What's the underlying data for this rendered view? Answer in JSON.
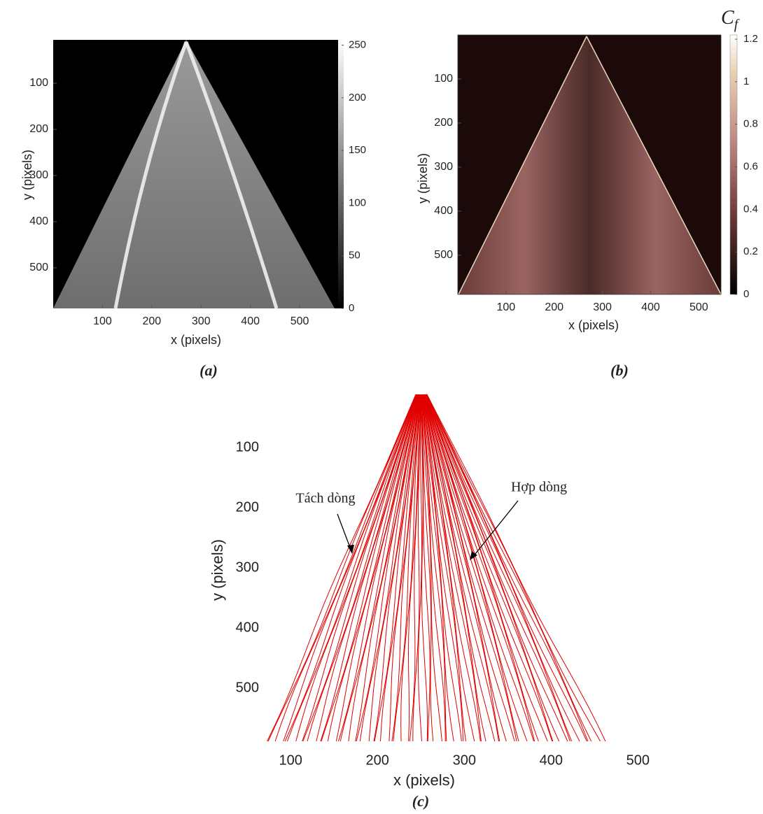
{
  "panels": [
    {
      "caption": "(a)",
      "x_label": "x (pixels)",
      "y_label": "y (pixels)",
      "xlim": [
        0,
        578
      ],
      "ylim": [
        6,
        588
      ],
      "xticks": [
        100,
        200,
        300,
        400,
        500
      ],
      "yticks": [
        100,
        200,
        300,
        400,
        500
      ],
      "colorbar": {
        "clim": [
          0,
          255
        ],
        "ticks": [
          0,
          50,
          100,
          150,
          200,
          250
        ]
      }
    },
    {
      "caption": "(b)",
      "x_label": "x (pixels)",
      "y_label": "y (pixels)",
      "xlim": [
        0,
        546
      ],
      "ylim": [
        0,
        589
      ],
      "xticks": [
        100,
        200,
        300,
        400,
        500
      ],
      "yticks": [
        100,
        200,
        300,
        400,
        500
      ],
      "colorbar": {
        "title": {
          "symbol": "C",
          "subscript": "f"
        },
        "clim": [
          0,
          1.22
        ],
        "ticks": [
          0,
          0.2,
          0.4,
          0.6,
          0.8,
          1,
          1.2
        ]
      }
    },
    {
      "caption": "(c)",
      "x_label": "x (pixels)",
      "y_label": "y (pixels)",
      "xlim": [
        70,
        511
      ],
      "ylim": [
        0,
        588
      ],
      "xticks": [
        100,
        200,
        300,
        400,
        500
      ],
      "yticks": [
        100,
        200,
        300,
        400,
        500
      ],
      "annotations": [
        "Tách dòng",
        "Hợp dòng"
      ]
    }
  ]
}
